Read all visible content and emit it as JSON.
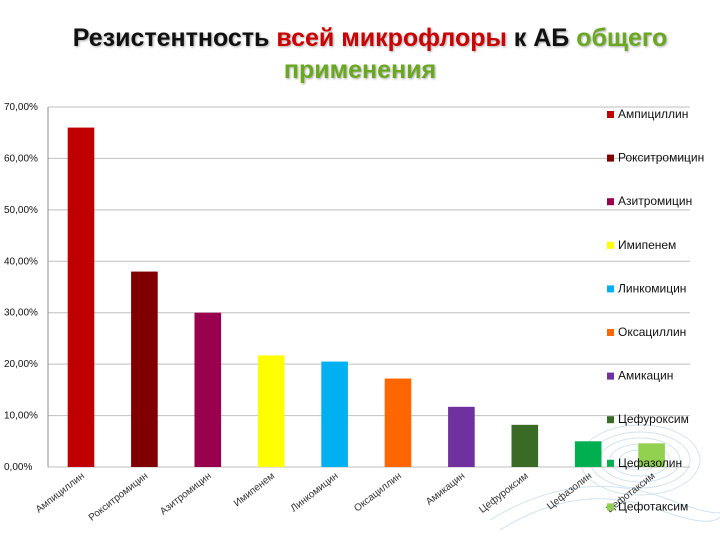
{
  "title": {
    "part1": "Резистентность ",
    "part2": "всей микрофлоры",
    "part3": " к АБ ",
    "part4": "общего",
    "line2": "применения",
    "color_main": "#111111",
    "color_red": "#cc0000",
    "color_green": "#6aa821"
  },
  "chart_data": {
    "type": "bar",
    "categories": [
      "Ампициллин",
      "Рокситромицин",
      "Азитромицин",
      "Имипенем",
      "Линкомицин",
      "Оксациллин",
      "Амикацин",
      "Цефуроксим",
      "Цефазолин",
      "Цефотаксим"
    ],
    "values": [
      0.66,
      0.38,
      0.3,
      0.217,
      0.205,
      0.172,
      0.117,
      0.082,
      0.05,
      0.046
    ],
    "colors": [
      "#c00000",
      "#800000",
      "#99004d",
      "#ffff00",
      "#00b0f0",
      "#ff6600",
      "#7030a0",
      "#3a6b26",
      "#00b050",
      "#92d050"
    ],
    "yticks": [
      "0,00%",
      "10,00%",
      "20,00%",
      "30,00%",
      "40,00%",
      "50,00%",
      "60,00%",
      "70,00%"
    ],
    "ylim": [
      0,
      0.7
    ],
    "grid": true,
    "legend": "right",
    "xlabel": "",
    "ylabel": ""
  }
}
